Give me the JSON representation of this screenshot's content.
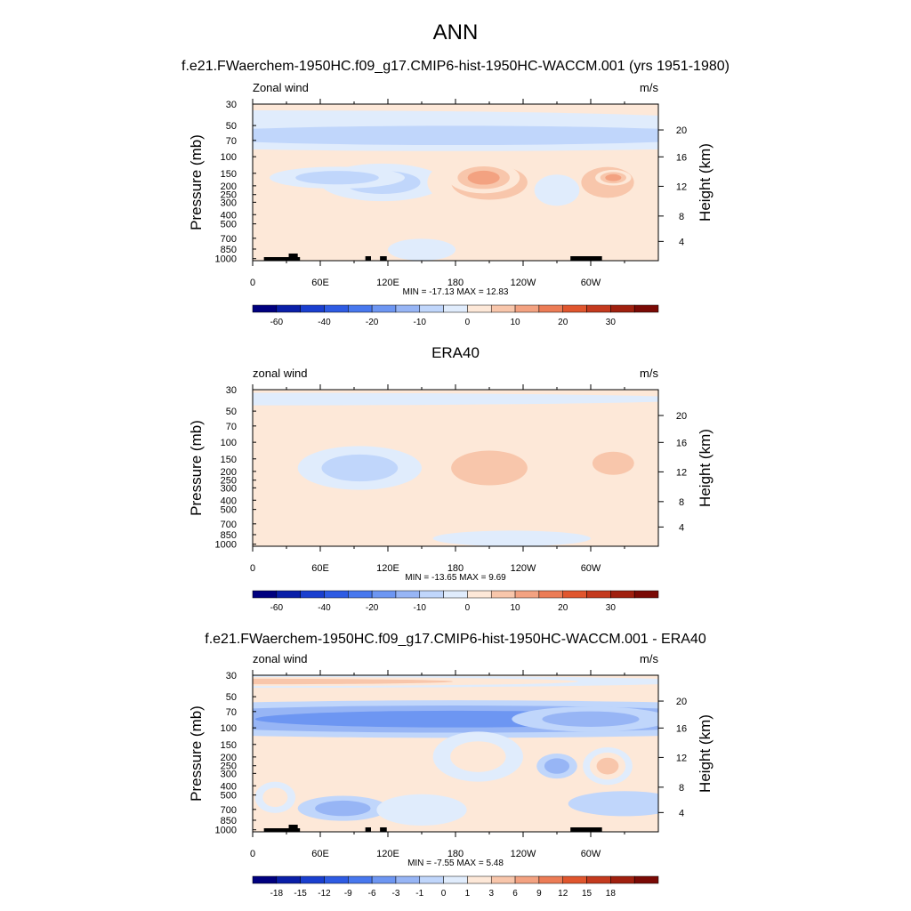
{
  "title": "ANN",
  "chart_data": [
    {
      "type": "contour",
      "title": "f.e21.FWaerchem-1950HC.f09_g17.CMIP6-hist-1950HC-WACCM.001 (yrs 1951-1980)",
      "left_label": "Zonal wind",
      "right_label": "m/s",
      "ylabel": "Pressure (mb)",
      "y2label": "Height (km)",
      "y_ticks": [
        "30",
        "50",
        "70",
        "100",
        "150",
        "200",
        "250",
        "300",
        "400",
        "500",
        "700",
        "850",
        "1000"
      ],
      "y2_ticks": [
        "20",
        "16",
        "12",
        "8",
        "4"
      ],
      "x_ticks": [
        "0",
        "60E",
        "120E",
        "180",
        "120W",
        "60W"
      ],
      "xlim": [
        0,
        360
      ],
      "stats": "MIN = -17.13  MAX =  12.83",
      "min": -17.13,
      "max": 12.83,
      "colorbar_labels": [
        "-60",
        "-40",
        "-20",
        "-10",
        "0",
        "10",
        "20",
        "30"
      ],
      "colorbar_levels": [
        -70,
        -60,
        -50,
        -40,
        -30,
        -20,
        -15,
        -10,
        -5,
        0,
        5,
        10,
        15,
        20,
        25,
        30,
        35
      ]
    },
    {
      "type": "contour",
      "title": "ERA40",
      "left_label": "zonal wind",
      "right_label": "m/s",
      "ylabel": "Pressure (mb)",
      "y2label": "Height (km)",
      "y_ticks": [
        "30",
        "50",
        "70",
        "100",
        "150",
        "200",
        "250",
        "300",
        "400",
        "500",
        "700",
        "850",
        "1000"
      ],
      "y2_ticks": [
        "20",
        "16",
        "12",
        "8",
        "4"
      ],
      "x_ticks": [
        "0",
        "60E",
        "120E",
        "180",
        "120W",
        "60W"
      ],
      "xlim": [
        0,
        360
      ],
      "stats": "MIN = -13.65  MAX =   9.69",
      "min": -13.65,
      "max": 9.69,
      "colorbar_labels": [
        "-60",
        "-40",
        "-20",
        "-10",
        "0",
        "10",
        "20",
        "30"
      ],
      "colorbar_levels": [
        -70,
        -60,
        -50,
        -40,
        -30,
        -20,
        -15,
        -10,
        -5,
        0,
        5,
        10,
        15,
        20,
        25,
        30,
        35
      ]
    },
    {
      "type": "contour",
      "title": "f.e21.FWaerchem-1950HC.f09_g17.CMIP6-hist-1950HC-WACCM.001 - ERA40",
      "left_label": "zonal wind",
      "right_label": "m/s",
      "ylabel": "Pressure (mb)",
      "y2label": "Height (km)",
      "y_ticks": [
        "30",
        "50",
        "70",
        "100",
        "150",
        "200",
        "250",
        "300",
        "400",
        "500",
        "700",
        "850",
        "1000"
      ],
      "y2_ticks": [
        "20",
        "16",
        "12",
        "8",
        "4"
      ],
      "x_ticks": [
        "0",
        "60E",
        "120E",
        "180",
        "120W",
        "60W"
      ],
      "xlim": [
        0,
        360
      ],
      "stats": "MIN =  -7.55  MAX =   5.48",
      "min": -7.55,
      "max": 5.48,
      "colorbar_labels": [
        "-18",
        "-15",
        "-12",
        "-9",
        "-6",
        "-3",
        "-1",
        "0",
        "1",
        "3",
        "6",
        "9",
        "12",
        "15",
        "18"
      ],
      "colorbar_levels": [
        -21,
        -18,
        -15,
        -12,
        -9,
        -6,
        -3,
        -1,
        0,
        1,
        3,
        6,
        9,
        12,
        15,
        18,
        21
      ]
    }
  ],
  "colors": {
    "palette": [
      "#00007f",
      "#0a1fa8",
      "#1a3fcf",
      "#2e5be3",
      "#4878ee",
      "#6d96f2",
      "#97b5f5",
      "#c0d6fb",
      "#e0ecfc",
      "#fde8d8",
      "#f8c6ab",
      "#f3a281",
      "#ec7c56",
      "#e0562e",
      "#c43a1e",
      "#a0200f",
      "#7a0a05"
    ],
    "ticks": "#000000",
    "land": "#000000"
  }
}
